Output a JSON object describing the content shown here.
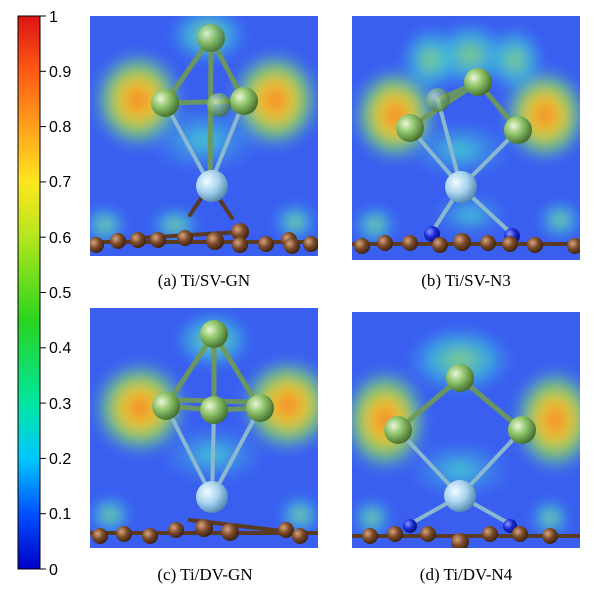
{
  "colorbar": {
    "ticks": [
      "1",
      "0.9",
      "0.8",
      "0.7",
      "0.6",
      "0.5",
      "0.4",
      "0.3",
      "0.2",
      "0.1",
      "0"
    ],
    "range": [
      0,
      1
    ],
    "colors": [
      "#0000c8",
      "#0050ff",
      "#00c8ff",
      "#00e6a0",
      "#2ad41e",
      "#b4e61e",
      "#ffe61e",
      "#ffa01e",
      "#ff5a14",
      "#dc1414"
    ]
  },
  "panels": [
    {
      "caption": "(a) Ti/SV-GN"
    },
    {
      "caption": "(b) Ti/SV-N3"
    },
    {
      "caption": "(c) Ti/DV-GN"
    },
    {
      "caption": "(d) Ti/DV-N4"
    }
  ],
  "atom_colors": {
    "background": "#3a5ef0",
    "carbon": "#7a4a2a",
    "nitrogen": "#1a2ad8",
    "titanium": "#a8d4ee",
    "cluster": "#8ec46a"
  }
}
